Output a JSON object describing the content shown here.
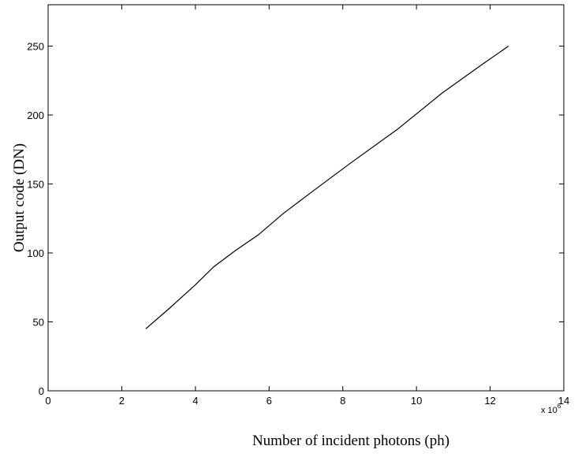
{
  "chart_data": {
    "type": "line",
    "title": "",
    "xlabel": "Number of incident photons (ph)",
    "ylabel": "Output code (DN)",
    "x_multiplier": {
      "base": "x 10",
      "exponent": "6"
    },
    "xlim": [
      0,
      14
    ],
    "ylim": [
      0,
      280
    ],
    "x_ticks": [
      0,
      2,
      4,
      6,
      8,
      10,
      12,
      14
    ],
    "y_ticks": [
      0,
      50,
      100,
      150,
      200,
      250
    ],
    "x_tick_labels": [
      "0",
      "2",
      "4",
      "6",
      "8",
      "10",
      "12",
      "14"
    ],
    "y_tick_labels": [
      "0",
      "50",
      "100",
      "150",
      "200",
      "250"
    ],
    "grid": false,
    "series": [
      {
        "color": "#000000",
        "x": [
          2.65,
          3.3,
          4.0,
          4.5,
          5.1,
          5.7,
          6.4,
          7.2,
          8.2,
          9.5,
          10.7,
          11.8,
          12.5
        ],
        "y": [
          45,
          60,
          77,
          90,
          102,
          113,
          129,
          145,
          165,
          190,
          216,
          237,
          250
        ]
      }
    ]
  }
}
